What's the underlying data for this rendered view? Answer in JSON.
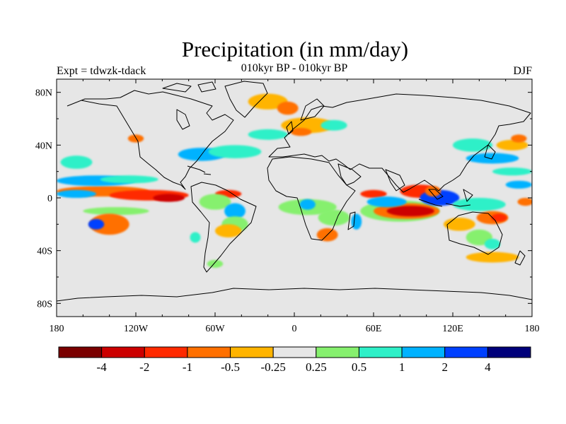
{
  "title": "Precipitation (in mm/day)",
  "subtitle_left": "Expt = tdwzk-tdack",
  "subtitle_center": "010kyr BP - 010kyr BP",
  "subtitle_right": "DJF",
  "axes": {
    "lon_ticks": [
      "180",
      "120W",
      "60W",
      "0",
      "60E",
      "120E",
      "180"
    ],
    "lat_ticks": [
      "80N",
      "40N",
      "0",
      "40S",
      "80S"
    ],
    "lon_range": [
      -180,
      180
    ],
    "lat_range": [
      -90,
      90
    ]
  },
  "colorbar": {
    "colors": [
      "#7a0000",
      "#cc0000",
      "#ff2a00",
      "#ff7000",
      "#ffb400",
      "#e6e6e6",
      "#86f06e",
      "#2ef0c8",
      "#00b2ff",
      "#0040ff",
      "#00007a"
    ],
    "labels": [
      "-4",
      "-2",
      "-1",
      "-0.5",
      "-0.25",
      "0.25",
      "0.5",
      "1",
      "2",
      "4"
    ]
  },
  "map": {
    "background": "#e6e6e6",
    "anomalies": [
      {
        "lon": -145,
        "lat": 5,
        "rx": 35,
        "ry": 4,
        "level": 3
      },
      {
        "lon": -110,
        "lat": 2,
        "rx": 30,
        "ry": 4,
        "level": 2
      },
      {
        "lon": -95,
        "lat": 0,
        "rx": 12,
        "ry": 3,
        "level": 1
      },
      {
        "lon": -150,
        "lat": 13,
        "rx": 30,
        "ry": 4,
        "level": 8
      },
      {
        "lon": -125,
        "lat": 14,
        "rx": 22,
        "ry": 3,
        "level": 7
      },
      {
        "lon": -135,
        "lat": -10,
        "rx": 25,
        "ry": 3,
        "level": 6
      },
      {
        "lon": -140,
        "lat": -20,
        "rx": 15,
        "ry": 8,
        "level": 3
      },
      {
        "lon": -150,
        "lat": -20,
        "rx": 6,
        "ry": 4,
        "level": 9
      },
      {
        "lon": -165,
        "lat": 27,
        "rx": 12,
        "ry": 5,
        "level": 7
      },
      {
        "lon": -120,
        "lat": 45,
        "rx": 6,
        "ry": 3,
        "level": 3
      },
      {
        "lon": -70,
        "lat": 33,
        "rx": 18,
        "ry": 5,
        "level": 8
      },
      {
        "lon": -45,
        "lat": 35,
        "rx": 20,
        "ry": 5,
        "level": 7
      },
      {
        "lon": -20,
        "lat": 48,
        "rx": 15,
        "ry": 4,
        "level": 7
      },
      {
        "lon": -20,
        "lat": 73,
        "rx": 15,
        "ry": 6,
        "level": 4
      },
      {
        "lon": -5,
        "lat": 68,
        "rx": 8,
        "ry": 5,
        "level": 3
      },
      {
        "lon": 10,
        "lat": 55,
        "rx": 20,
        "ry": 6,
        "level": 4
      },
      {
        "lon": 5,
        "lat": 50,
        "rx": 8,
        "ry": 3,
        "level": 3
      },
      {
        "lon": 30,
        "lat": 55,
        "rx": 10,
        "ry": 4,
        "level": 7
      },
      {
        "lon": -50,
        "lat": 3,
        "rx": 10,
        "ry": 3,
        "level": 2
      },
      {
        "lon": -60,
        "lat": -3,
        "rx": 12,
        "ry": 6,
        "level": 6
      },
      {
        "lon": -45,
        "lat": -10,
        "rx": 8,
        "ry": 6,
        "level": 8
      },
      {
        "lon": -45,
        "lat": -20,
        "rx": 10,
        "ry": 6,
        "level": 6
      },
      {
        "lon": -50,
        "lat": -25,
        "rx": 10,
        "ry": 5,
        "level": 4
      },
      {
        "lon": -75,
        "lat": -30,
        "rx": 4,
        "ry": 4,
        "level": 7
      },
      {
        "lon": -60,
        "lat": -50,
        "rx": 6,
        "ry": 3,
        "level": 6
      },
      {
        "lon": 10,
        "lat": -7,
        "rx": 22,
        "ry": 6,
        "level": 6
      },
      {
        "lon": 10,
        "lat": -5,
        "rx": 6,
        "ry": 4,
        "level": 8
      },
      {
        "lon": 30,
        "lat": -15,
        "rx": 12,
        "ry": 6,
        "level": 6
      },
      {
        "lon": 25,
        "lat": -28,
        "rx": 8,
        "ry": 5,
        "level": 3
      },
      {
        "lon": 47,
        "lat": -18,
        "rx": 4,
        "ry": 6,
        "level": 8
      },
      {
        "lon": 60,
        "lat": 3,
        "rx": 10,
        "ry": 3,
        "level": 2
      },
      {
        "lon": 80,
        "lat": -10,
        "rx": 30,
        "ry": 8,
        "level": 6
      },
      {
        "lon": 85,
        "lat": -10,
        "rx": 25,
        "ry": 6,
        "level": 3
      },
      {
        "lon": 88,
        "lat": -10,
        "rx": 18,
        "ry": 4,
        "level": 1
      },
      {
        "lon": 70,
        "lat": -3,
        "rx": 15,
        "ry": 4,
        "level": 8
      },
      {
        "lon": 95,
        "lat": 5,
        "rx": 15,
        "ry": 5,
        "level": 2
      },
      {
        "lon": 110,
        "lat": 0,
        "rx": 15,
        "ry": 6,
        "level": 9
      },
      {
        "lon": 105,
        "lat": 5,
        "rx": 6,
        "ry": 4,
        "level": 3
      },
      {
        "lon": 140,
        "lat": -5,
        "rx": 20,
        "ry": 5,
        "level": 7
      },
      {
        "lon": 150,
        "lat": -15,
        "rx": 12,
        "ry": 5,
        "level": 3
      },
      {
        "lon": 155,
        "lat": -15,
        "rx": 6,
        "ry": 3,
        "level": 2
      },
      {
        "lon": 125,
        "lat": -20,
        "rx": 12,
        "ry": 5,
        "level": 4
      },
      {
        "lon": 140,
        "lat": -30,
        "rx": 10,
        "ry": 6,
        "level": 6
      },
      {
        "lon": 150,
        "lat": -35,
        "rx": 6,
        "ry": 4,
        "level": 7
      },
      {
        "lon": 150,
        "lat": -45,
        "rx": 20,
        "ry": 4,
        "level": 4
      },
      {
        "lon": 135,
        "lat": 40,
        "rx": 15,
        "ry": 5,
        "level": 7
      },
      {
        "lon": 150,
        "lat": 30,
        "rx": 20,
        "ry": 4,
        "level": 8
      },
      {
        "lon": 165,
        "lat": 40,
        "rx": 12,
        "ry": 4,
        "level": 4
      },
      {
        "lon": 170,
        "lat": 45,
        "rx": 6,
        "ry": 3,
        "level": 3
      },
      {
        "lon": 165,
        "lat": 20,
        "rx": 15,
        "ry": 3,
        "level": 7
      },
      {
        "lon": 170,
        "lat": 10,
        "rx": 10,
        "ry": 3,
        "level": 8
      },
      {
        "lon": 175,
        "lat": -3,
        "rx": 6,
        "ry": 3,
        "level": 3
      },
      {
        "lon": -165,
        "lat": 3,
        "rx": 15,
        "ry": 3,
        "level": 8
      }
    ]
  }
}
